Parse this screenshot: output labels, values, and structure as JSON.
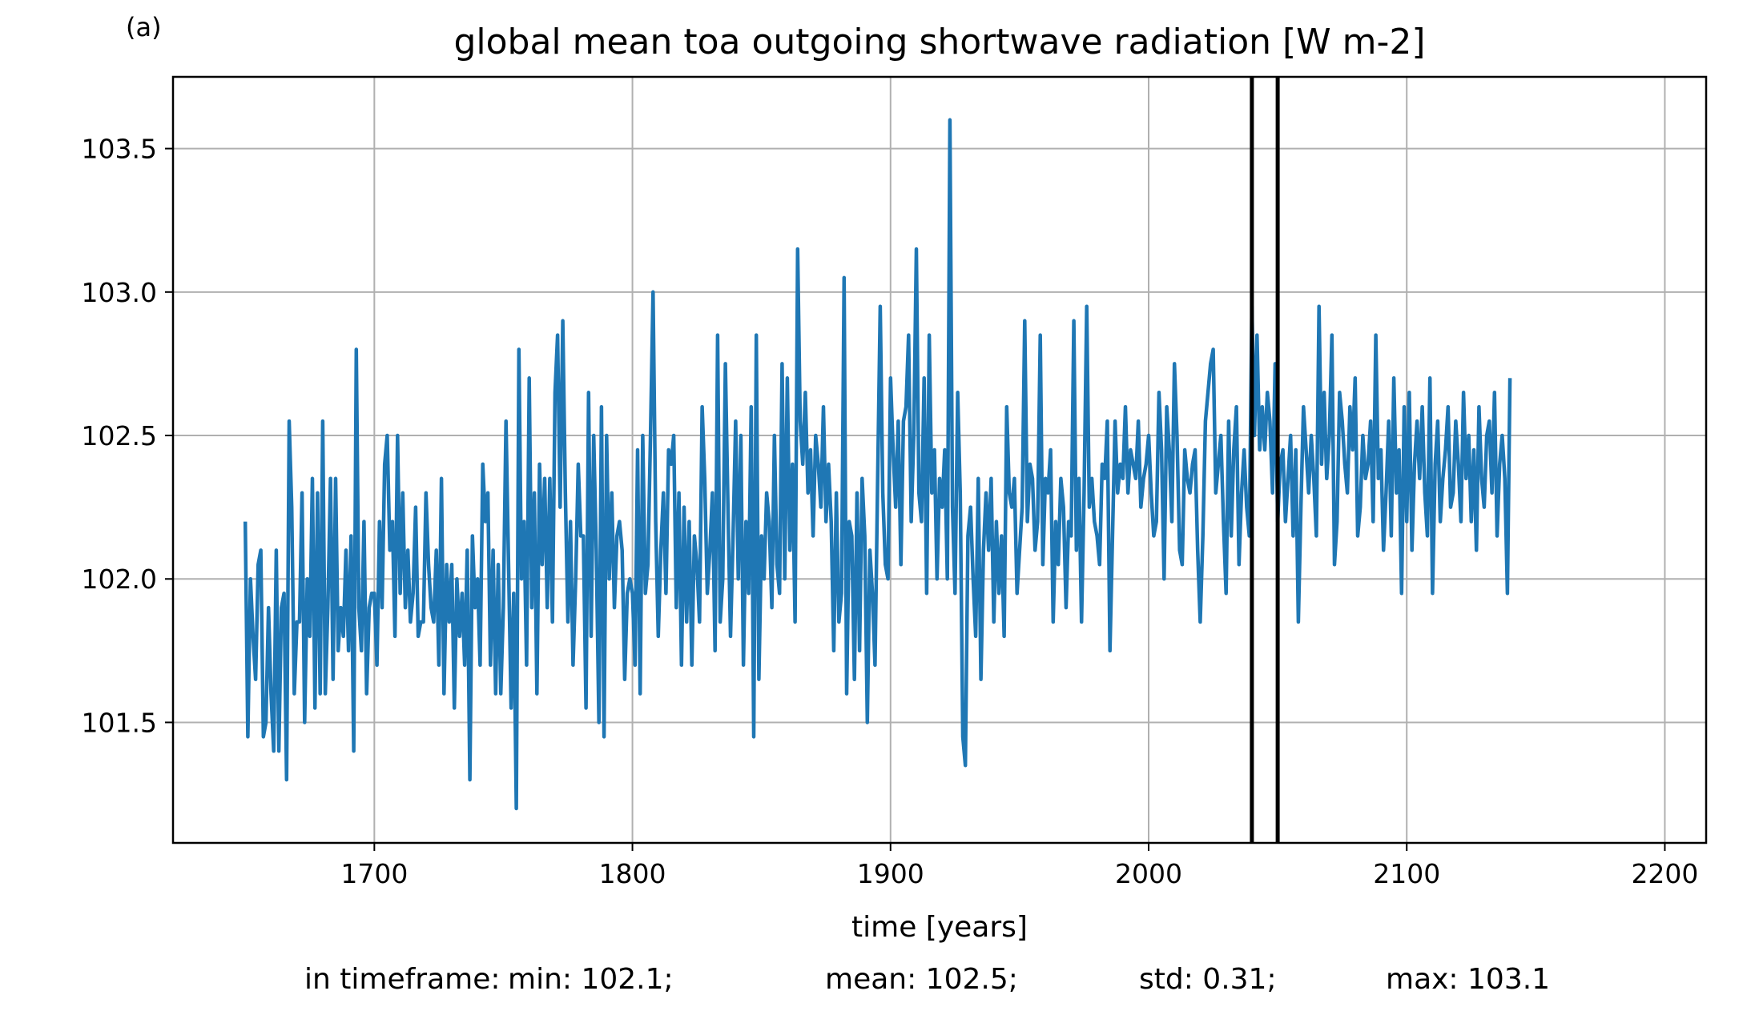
{
  "panel_label": "(a)",
  "chart_data": {
    "type": "line",
    "title": "global mean toa outgoing shortwave radiation [W m-2]",
    "xlabel": "time [years]",
    "ylabel": "",
    "xlim": [
      1622,
      2216
    ],
    "ylim": [
      101.08,
      103.75
    ],
    "xticks": [
      1700,
      1800,
      1900,
      2000,
      2100,
      2200
    ],
    "yticks": [
      101.5,
      102.0,
      102.5,
      103.0,
      103.5
    ],
    "xtick_labels": [
      "1700",
      "1800",
      "1900",
      "2000",
      "2100",
      "2200"
    ],
    "ytick_labels": [
      "101.5",
      "102.0",
      "102.5",
      "103.0",
      "103.5"
    ],
    "grid": true,
    "legend": "none",
    "line_color": "#1f77b4",
    "vlines": [
      2040,
      2050
    ],
    "vline_color": "#000000",
    "series": [
      {
        "x_start": 1650,
        "x_step": 1,
        "values": [
          102.2,
          101.45,
          102.0,
          101.8,
          101.65,
          102.05,
          102.1,
          101.45,
          101.5,
          101.9,
          101.6,
          101.4,
          102.1,
          101.4,
          101.9,
          101.95,
          101.3,
          102.55,
          102.25,
          101.6,
          101.85,
          101.85,
          102.3,
          101.5,
          102.0,
          101.8,
          102.35,
          101.55,
          102.3,
          101.6,
          102.55,
          101.6,
          101.9,
          102.35,
          101.65,
          102.35,
          101.75,
          101.9,
          101.8,
          102.1,
          101.75,
          102.15,
          101.4,
          102.8,
          101.9,
          101.75,
          102.2,
          101.6,
          101.9,
          101.95,
          101.95,
          101.7,
          102.2,
          101.9,
          102.4,
          102.5,
          102.1,
          102.2,
          101.8,
          102.5,
          101.95,
          102.3,
          101.9,
          102.1,
          101.85,
          101.95,
          102.25,
          101.8,
          101.85,
          101.85,
          102.3,
          102.05,
          101.9,
          101.85,
          102.1,
          101.7,
          102.35,
          101.6,
          102.05,
          101.85,
          102.05,
          101.55,
          102.0,
          101.8,
          101.95,
          101.7,
          102.1,
          101.3,
          102.15,
          101.9,
          102.0,
          101.7,
          102.4,
          102.2,
          102.3,
          101.7,
          102.1,
          101.6,
          102.05,
          101.6,
          101.9,
          102.55,
          102.05,
          101.55,
          101.95,
          101.2,
          102.8,
          102.0,
          102.2,
          101.7,
          102.7,
          101.9,
          102.3,
          101.6,
          102.4,
          102.05,
          102.35,
          101.9,
          102.35,
          101.85,
          102.65,
          102.85,
          102.25,
          102.9,
          102.3,
          101.85,
          102.2,
          101.7,
          102.0,
          102.4,
          102.15,
          102.15,
          101.55,
          102.65,
          101.8,
          102.5,
          102.1,
          101.5,
          102.6,
          101.45,
          102.5,
          102.0,
          102.3,
          101.9,
          102.15,
          102.2,
          102.1,
          101.65,
          101.95,
          102.0,
          101.95,
          101.7,
          102.45,
          101.6,
          102.5,
          101.95,
          102.05,
          102.5,
          103.0,
          102.2,
          101.8,
          102.1,
          102.3,
          101.95,
          102.45,
          102.4,
          102.5,
          101.9,
          102.3,
          101.7,
          102.25,
          101.85,
          102.2,
          101.7,
          102.15,
          102.05,
          101.85,
          102.6,
          102.35,
          101.95,
          102.1,
          102.3,
          101.75,
          102.85,
          101.85,
          102.0,
          102.75,
          102.25,
          101.8,
          102.15,
          102.55,
          102.0,
          102.5,
          101.7,
          102.2,
          101.95,
          102.6,
          101.45,
          102.85,
          101.65,
          102.15,
          102.0,
          102.3,
          102.2,
          101.9,
          102.5,
          102.05,
          101.95,
          102.75,
          102.0,
          102.7,
          102.1,
          102.4,
          101.85,
          103.15,
          102.55,
          102.4,
          102.65,
          102.3,
          102.45,
          102.15,
          102.5,
          102.4,
          102.25,
          102.6,
          102.2,
          102.4,
          102.2,
          101.75,
          102.3,
          101.85,
          101.95,
          103.05,
          101.6,
          102.2,
          102.15,
          101.65,
          102.3,
          101.75,
          102.35,
          102.15,
          101.5,
          102.1,
          101.95,
          101.7,
          102.35,
          102.95,
          102.3,
          102.05,
          102.0,
          102.7,
          102.45,
          102.25,
          102.55,
          102.05,
          102.55,
          102.6,
          102.85,
          102.2,
          102.5,
          103.15,
          102.3,
          102.2,
          102.7,
          101.95,
          102.85,
          102.3,
          102.45,
          102.0,
          102.35,
          102.25,
          102.45,
          102.0,
          103.6,
          102.25,
          101.95,
          102.65,
          102.3,
          101.45,
          101.35,
          102.15,
          102.25,
          102.0,
          101.8,
          102.35,
          101.65,
          102.1,
          102.3,
          102.1,
          102.35,
          101.85,
          102.2,
          101.95,
          102.15,
          101.8,
          102.6,
          102.3,
          102.25,
          102.35,
          101.95,
          102.1,
          102.25,
          102.9,
          102.2,
          102.4,
          102.35,
          102.1,
          102.2,
          102.85,
          102.05,
          102.35,
          102.3,
          102.45,
          101.85,
          102.2,
          102.05,
          102.35,
          102.25,
          101.9,
          102.2,
          102.15,
          102.9,
          102.1,
          102.35,
          101.85,
          102.3,
          102.95,
          102.25,
          102.35,
          102.2,
          102.15,
          102.05,
          102.4,
          102.35,
          102.55,
          101.75,
          102.15,
          102.55,
          102.3,
          102.4,
          102.35,
          102.6,
          102.3,
          102.45,
          102.4,
          102.35,
          102.55,
          102.25,
          102.35,
          102.4,
          102.5,
          102.3,
          102.15,
          102.2,
          102.65,
          102.45,
          102.0,
          102.6,
          102.45,
          102.2,
          102.75,
          102.5,
          102.1,
          102.05,
          102.45,
          102.35,
          102.3,
          102.4,
          102.45,
          102.1,
          101.85,
          102.15,
          102.55,
          102.65,
          102.75,
          102.8,
          102.3,
          102.4,
          102.5,
          102.2,
          101.95,
          102.55,
          102.15,
          102.45,
          102.6,
          102.05,
          102.3,
          102.45,
          102.25,
          102.15,
          102.95,
          102.5,
          102.85,
          102.45,
          102.6,
          102.45,
          102.65,
          102.55,
          102.3,
          102.75,
          102.2,
          102.4,
          102.45,
          102.2,
          102.35,
          102.5,
          102.15,
          102.45,
          101.85,
          102.25,
          102.6,
          102.45,
          102.3,
          102.5,
          102.35,
          102.15,
          102.95,
          102.4,
          102.65,
          102.35,
          102.5,
          102.85,
          102.05,
          102.2,
          102.65,
          102.55,
          102.4,
          102.3,
          102.6,
          102.45,
          102.7,
          102.15,
          102.25,
          102.5,
          102.35,
          102.4,
          102.55,
          102.2,
          102.85,
          102.35,
          102.45,
          102.1,
          102.3,
          102.55,
          102.15,
          102.7,
          102.3,
          102.45,
          101.95,
          102.6,
          102.2,
          102.65,
          102.1,
          102.4,
          102.55,
          102.35,
          102.6,
          102.3,
          102.15,
          102.7,
          101.95,
          102.4,
          102.55,
          102.2,
          102.35,
          102.45,
          102.6,
          102.25,
          102.3,
          102.55,
          102.4,
          102.2,
          102.65,
          102.35,
          102.5,
          102.2,
          102.45,
          102.1,
          102.6,
          102.35,
          102.25,
          102.5,
          102.55,
          102.3,
          102.65,
          102.15,
          102.4,
          102.5,
          102.35,
          101.95,
          102.7
        ]
      }
    ]
  },
  "stats": {
    "prefix": "in timeframe:",
    "min": "min: 102.1;",
    "mean": "mean: 102.5;",
    "std": "std: 0.31;",
    "max": "max: 103.1"
  }
}
